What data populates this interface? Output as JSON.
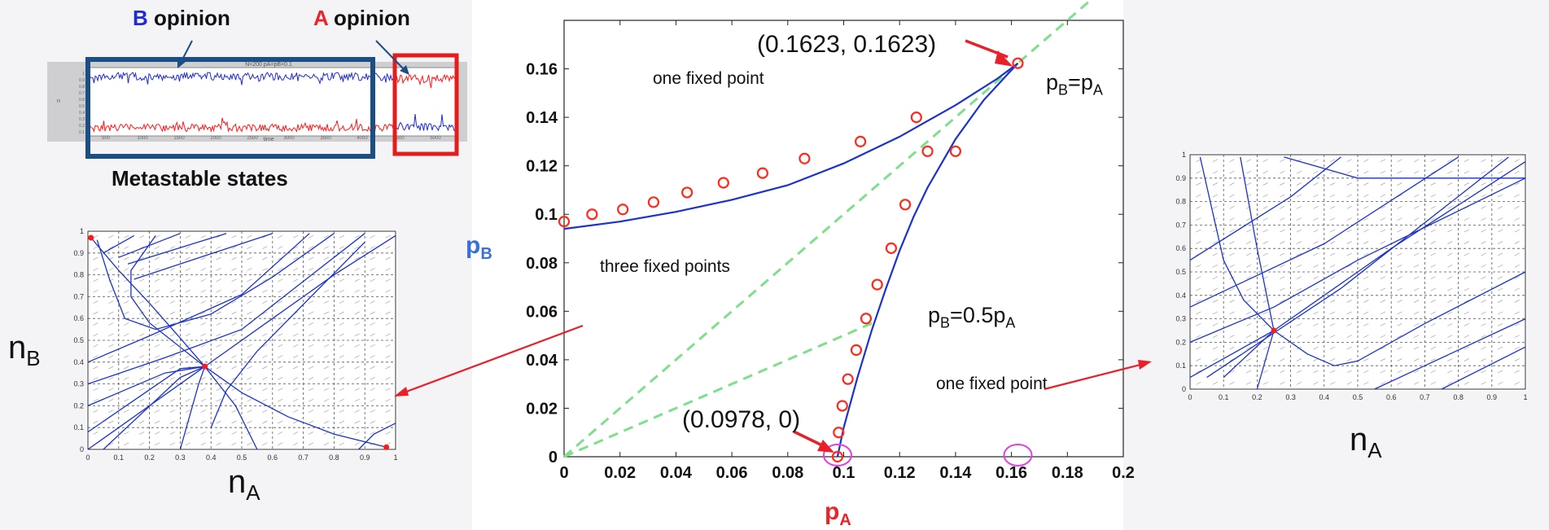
{
  "figure": {
    "colors": {
      "blue_text": "#1f2bd6",
      "red_text": "#e8252b",
      "light_blue_text": "#3a6fd8",
      "curve": "#1c33c9",
      "marker": "#ff2a1c",
      "dashed": "#7de08a",
      "magenta": "#e040e6",
      "arrow": "#e8202a",
      "box_blue": "#1c4e86",
      "box_red": "#e41c1c"
    }
  },
  "timeseries": {
    "b_label_letter": "B",
    "b_label_word": " opinion",
    "a_label_letter": "A",
    "a_label_word": " opinion",
    "caption": "Metastable states",
    "header": "N=200 pA=pB=0.1",
    "xlabel": "time",
    "ylabel": "n",
    "xticks": [
      "500",
      "1000",
      "1500",
      "2000",
      "2500",
      "3000",
      "3500",
      "4000",
      "4500",
      "5000"
    ],
    "yticks": [
      "0.1",
      "0.2",
      "0.3",
      "0.4",
      "0.5",
      "0.6",
      "0.7",
      "0.8",
      "0.9",
      "1"
    ]
  },
  "phase_left": {
    "xlabel": "n",
    "xlabel_sub": "A",
    "ylabel": "n",
    "ylabel_sub": "B",
    "xticks": [
      "0",
      "0.1",
      "0.2",
      "0.3",
      "0.4",
      "0.5",
      "0.6",
      "0.7",
      "0.8",
      "0.9",
      "1"
    ],
    "yticks": [
      "0",
      "0.1",
      "0.2",
      "0.3",
      "0.4",
      "0.5",
      "0.6",
      "0.7",
      "0.8",
      "0.9",
      "1"
    ],
    "fixed_points": [
      [
        0.01,
        0.97
      ],
      [
        0.38,
        0.38
      ],
      [
        0.97,
        0.01
      ]
    ]
  },
  "phase_right": {
    "xlabel": "n",
    "xlabel_sub": "A",
    "xticks": [
      "0",
      "0.1",
      "0.2",
      "0.3",
      "0.4",
      "0.5",
      "0.6",
      "0.7",
      "0.8",
      "0.9",
      "1"
    ],
    "yticks": [
      "0",
      "0.1",
      "0.2",
      "0.3",
      "0.4",
      "0.5",
      "0.6",
      "0.7",
      "0.8",
      "0.9",
      "1"
    ],
    "fixed_points": [
      [
        0.25,
        0.25
      ]
    ]
  },
  "chart_data": {
    "type": "line",
    "xlabel": "p",
    "xlabel_sub": "A",
    "ylabel": "p",
    "ylabel_sub": "B",
    "xlim": [
      0,
      0.2
    ],
    "ylim": [
      0,
      0.18
    ],
    "xticks": [
      "0",
      "0.02",
      "0.04",
      "0.06",
      "0.08",
      "0.1",
      "0.12",
      "0.14",
      "0.16",
      "0.18",
      "0.2"
    ],
    "yticks": [
      "0",
      "0.02",
      "0.04",
      "0.06",
      "0.08",
      "0.1",
      "0.12",
      "0.14",
      "0.16"
    ],
    "grid": false,
    "series": [
      {
        "x": [
          0,
          0.02,
          0.04,
          0.06,
          0.08,
          0.1,
          0.12,
          0.14,
          0.155,
          0.1623
        ],
        "y": [
          0.094,
          0.097,
          0.101,
          0.106,
          0.112,
          0.121,
          0.132,
          0.145,
          0.156,
          0.1623
        ]
      },
      {
        "x": [
          0.0978,
          0.1,
          0.105,
          0.11,
          0.115,
          0.12,
          0.125,
          0.13,
          0.14,
          0.15,
          0.158,
          0.1623
        ],
        "y": [
          0,
          0.012,
          0.033,
          0.052,
          0.069,
          0.085,
          0.099,
          0.111,
          0.131,
          0.147,
          0.157,
          0.1623
        ]
      },
      {
        "x": [
          0,
          0.2
        ],
        "y": [
          0,
          0.2
        ]
      },
      {
        "x": [
          0,
          0.112
        ],
        "y": [
          0,
          0.056
        ]
      }
    ],
    "markers": {
      "x": [
        0,
        0.01,
        0.021,
        0.032,
        0.044,
        0.057,
        0.071,
        0.086,
        0.106,
        0.126,
        0.1623,
        0.0978,
        0.0982,
        0.0995,
        0.1015,
        0.1045,
        0.108,
        0.112,
        0.117,
        0.122,
        0.13,
        0.14
      ],
      "y": [
        0.097,
        0.1,
        0.102,
        0.105,
        0.109,
        0.113,
        0.117,
        0.123,
        0.13,
        0.14,
        0.1623,
        0,
        0.01,
        0.021,
        0.032,
        0.044,
        0.057,
        0.071,
        0.086,
        0.104,
        0.126,
        0.126
      ]
    },
    "annotations": [
      {
        "text": "(0.1623, 0.1623)"
      },
      {
        "text": "(0.0978, 0)"
      },
      {
        "text": "one fixed point"
      },
      {
        "text": "three fixed points"
      },
      {
        "text": "one fixed point"
      }
    ],
    "line_labels": [
      {
        "a": "p",
        "a_sub": "B",
        "b": "=p",
        "b_sub": "A"
      },
      {
        "a": "p",
        "a_sub": "B",
        "b": "=0.5p",
        "b_sub": "A"
      }
    ]
  }
}
